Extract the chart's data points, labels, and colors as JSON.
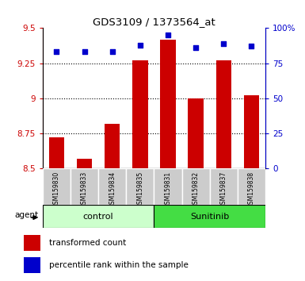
{
  "title": "GDS3109 / 1373564_at",
  "samples": [
    "GSM159830",
    "GSM159833",
    "GSM159834",
    "GSM159835",
    "GSM159831",
    "GSM159832",
    "GSM159837",
    "GSM159838"
  ],
  "groups": [
    "control",
    "control",
    "control",
    "control",
    "Sunitinib",
    "Sunitinib",
    "Sunitinib",
    "Sunitinib"
  ],
  "bar_values": [
    8.72,
    8.57,
    8.82,
    9.27,
    9.42,
    9.0,
    9.27,
    9.02
  ],
  "scatter_values": [
    83,
    83,
    83,
    88,
    95,
    86,
    89,
    87
  ],
  "bar_bottom": 8.5,
  "ylim_left": [
    8.5,
    9.5
  ],
  "ylim_right": [
    0,
    100
  ],
  "yticks_left": [
    8.5,
    8.75,
    9.0,
    9.25,
    9.5
  ],
  "ytick_labels_left": [
    "8.5",
    "8.75",
    "9",
    "9.25",
    "9.5"
  ],
  "yticks_right": [
    0,
    25,
    50,
    75,
    100
  ],
  "ytick_labels_right": [
    "0",
    "25",
    "50",
    "75",
    "100%"
  ],
  "hlines": [
    8.75,
    9.0,
    9.25
  ],
  "bar_color": "#cc0000",
  "scatter_color": "#0000cc",
  "control_color": "#ccffcc",
  "sunitinib_color": "#44dd44",
  "sample_box_color": "#cccccc",
  "agent_label": "agent",
  "legend_bar_label": "transformed count",
  "legend_scatter_label": "percentile rank within the sample",
  "n_control": 4,
  "n_sunitinib": 4
}
